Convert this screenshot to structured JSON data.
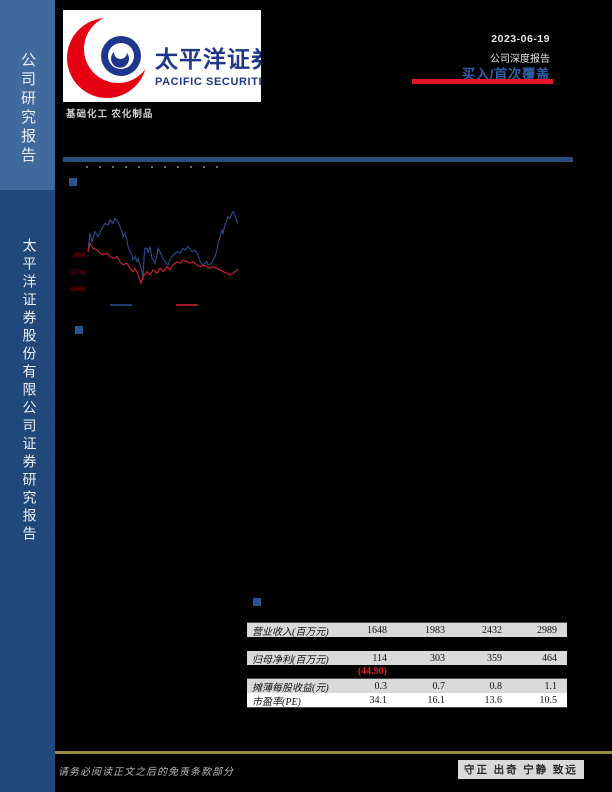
{
  "sidebar": {
    "top_label": "公司研究报告",
    "bottom_label": "太平洋证券股份有限公司证券研究报告",
    "top_bg": "#40699e",
    "bottom_bg": "#20487a"
  },
  "logo": {
    "cn_name": "太平洋证券",
    "en_name": "PACIFIC SECURITIES",
    "red": "#e60012",
    "blue": "#20368c"
  },
  "sector": "基础化工 农化制品",
  "header": {
    "date": "2023-06-19",
    "report_type": "公司深度报告",
    "rating": "买入/首次覆盖",
    "rating_color": "#2e5fa3",
    "accent_red": "#e61428",
    "rule_blue": "#2a4d7c"
  },
  "chart_data": {
    "type": "line",
    "title": "",
    "xlabel": "",
    "ylabel": "",
    "ylim": [
      -26.5,
      18.5
    ],
    "grid": false,
    "legend_position": "bottom",
    "ytick_color": "#c00000",
    "yticks": [
      {
        "label": "(8%)",
        "value": -8
      },
      {
        "label": "(17%)",
        "value": -17
      },
      {
        "label": "(26%)",
        "value": -26
      }
    ],
    "series": [
      {
        "name": "",
        "color": "#25508f",
        "points": [
          [
            0,
            -6.2
          ],
          [
            1.3,
            3.7
          ],
          [
            2.7,
            -0.9
          ],
          [
            4.7,
            4.4
          ],
          [
            6.7,
            1.7
          ],
          [
            9.3,
            6.2
          ],
          [
            11.3,
            8.8
          ],
          [
            13.3,
            7.9
          ],
          [
            14.7,
            10.6
          ],
          [
            16.7,
            8.8
          ],
          [
            18,
            11.5
          ],
          [
            20,
            9.7
          ],
          [
            21.3,
            7.1
          ],
          [
            22.7,
            4.4
          ],
          [
            23.3,
            1.7
          ],
          [
            24.7,
            3.5
          ],
          [
            26,
            0
          ],
          [
            26.7,
            -3.5
          ],
          [
            28,
            -6.2
          ],
          [
            29.3,
            -7.9
          ],
          [
            30,
            -10.6
          ],
          [
            31.3,
            -8.8
          ],
          [
            32.7,
            -11.5
          ],
          [
            33.3,
            -9.7
          ],
          [
            34.7,
            -13.2
          ],
          [
            36,
            -16.8
          ],
          [
            36.7,
            -21.2
          ],
          [
            37.3,
            -9.5
          ],
          [
            38,
            -4.2
          ],
          [
            39.3,
            -4.4
          ],
          [
            40,
            -7
          ],
          [
            41.3,
            -3.5
          ],
          [
            42.7,
            -9.7
          ],
          [
            44.7,
            -12.3
          ],
          [
            46,
            -7.9
          ],
          [
            46.7,
            -4.4
          ],
          [
            48,
            -6.2
          ],
          [
            49.3,
            -8.8
          ],
          [
            51.3,
            -11.5
          ],
          [
            53.3,
            -13.2
          ],
          [
            54.7,
            -10.6
          ],
          [
            56.7,
            -7.9
          ],
          [
            59.3,
            -6.2
          ],
          [
            61.3,
            -7
          ],
          [
            63.3,
            -4.4
          ],
          [
            64.7,
            -5.3
          ],
          [
            66.7,
            -3.5
          ],
          [
            69.3,
            -6.2
          ],
          [
            71.3,
            -5.3
          ],
          [
            73.3,
            -7.9
          ],
          [
            74.7,
            -11.5
          ],
          [
            76.7,
            -13.2
          ],
          [
            79.3,
            -11.5
          ],
          [
            80,
            -13.2
          ],
          [
            82.7,
            -12.3
          ],
          [
            83.3,
            -10.6
          ],
          [
            84.7,
            -8.8
          ],
          [
            86,
            -5.3
          ],
          [
            86.7,
            -1.8
          ],
          [
            88,
            1.7
          ],
          [
            89.3,
            5.3
          ],
          [
            90,
            3.5
          ],
          [
            91.3,
            7.9
          ],
          [
            92.7,
            10.6
          ],
          [
            93.3,
            12.3
          ],
          [
            94.7,
            11.5
          ],
          [
            96,
            14.1
          ],
          [
            96.7,
            15
          ],
          [
            98,
            13.2
          ],
          [
            99.3,
            9.7
          ],
          [
            100,
            8.8
          ]
        ]
      },
      {
        "name": "",
        "color": "#d91f30",
        "points": [
          [
            0,
            -6.2
          ],
          [
            1.3,
            -1.8
          ],
          [
            3.3,
            -4.4
          ],
          [
            6,
            -5.3
          ],
          [
            8,
            -7
          ],
          [
            10,
            -7.9
          ],
          [
            12.7,
            -7
          ],
          [
            14.7,
            -8.8
          ],
          [
            16.7,
            -9.7
          ],
          [
            19.3,
            -8.8
          ],
          [
            21.3,
            -11.5
          ],
          [
            23.3,
            -13.2
          ],
          [
            26,
            -12.3
          ],
          [
            28,
            -15
          ],
          [
            30,
            -16.8
          ],
          [
            31.3,
            -15
          ],
          [
            33.3,
            -18.5
          ],
          [
            35.3,
            -22.9
          ],
          [
            36.7,
            -19.4
          ],
          [
            39.3,
            -16.8
          ],
          [
            41.3,
            -18.5
          ],
          [
            43.3,
            -15.9
          ],
          [
            46,
            -17.6
          ],
          [
            48,
            -15
          ],
          [
            50,
            -16.8
          ],
          [
            52.7,
            -14.1
          ],
          [
            54.7,
            -15.9
          ],
          [
            56.7,
            -13.2
          ],
          [
            59.3,
            -11.5
          ],
          [
            61.3,
            -12.3
          ],
          [
            63.3,
            -10.6
          ],
          [
            66,
            -11.5
          ],
          [
            68,
            -12.3
          ],
          [
            70,
            -11.5
          ],
          [
            72.7,
            -13.2
          ],
          [
            74.7,
            -14.1
          ],
          [
            76.7,
            -13.2
          ],
          [
            79.3,
            -14.1
          ],
          [
            81.3,
            -15
          ],
          [
            83.3,
            -14.1
          ],
          [
            86,
            -15
          ],
          [
            88,
            -15.9
          ],
          [
            90,
            -16.8
          ],
          [
            92.7,
            -17.6
          ],
          [
            94.7,
            -18.5
          ],
          [
            96.7,
            -17.6
          ],
          [
            99.3,
            -15.9
          ],
          [
            100,
            -15.3
          ]
        ]
      }
    ],
    "legend": {
      "entries": [
        {
          "color": "#25508f",
          "label": ""
        },
        {
          "color": "#d91f30",
          "label": ""
        }
      ]
    }
  },
  "table": {
    "rows": [
      {
        "label": "营业收入(百万元)",
        "values": [
          "1648",
          "1983",
          "2432",
          "2989"
        ]
      },
      {
        "label": "归母净利(百万元)",
        "values": [
          "114",
          "303",
          "359",
          "464"
        ]
      },
      {
        "label": "摊薄每股收益(元)",
        "values": [
          "0.3",
          "0.7",
          "0.8",
          "1.1"
        ]
      },
      {
        "label": "市盈率(PE)",
        "values": [
          "34.1",
          "16.1",
          "13.6",
          "10.5"
        ]
      }
    ],
    "negative_growth_value": "(44.90)",
    "row_bg": "#d9d9d9",
    "last_row_bg": "#ffffff",
    "negative_color": "#e02020"
  },
  "footer": {
    "disclaimer": "请务必阅读正文之后的免责条款部分",
    "motto": "守正 出奇 宁静 致远",
    "rule_color": "#9b8b3d"
  }
}
